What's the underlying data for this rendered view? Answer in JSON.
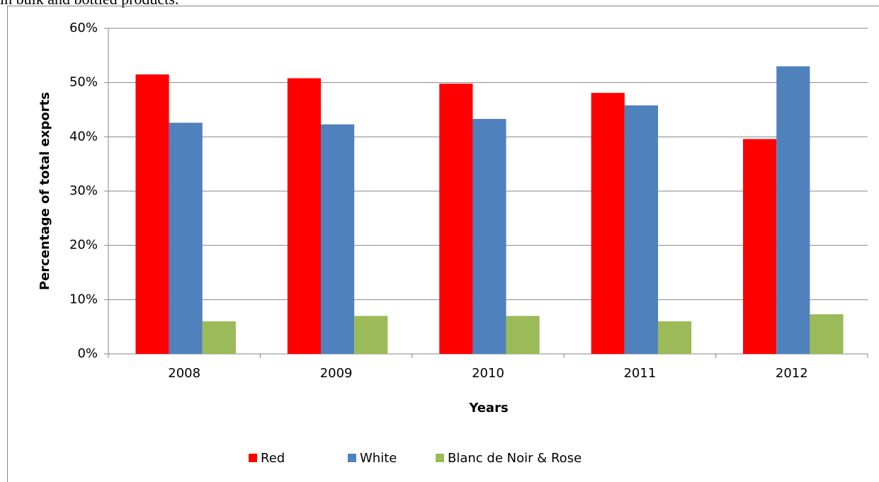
{
  "page_text": "in bulk and bottled products.",
  "chart_data": {
    "type": "bar",
    "x_label": "Years",
    "y_label": "Percentage of total exports",
    "categories": [
      "2008",
      "2009",
      "2010",
      "2011",
      "2012"
    ],
    "series": [
      {
        "name": "Red",
        "color": "#ff0000",
        "values": [
          51.5,
          50.8,
          49.8,
          48.1,
          39.6
        ]
      },
      {
        "name": "White",
        "color": "#4f81bd",
        "values": [
          42.6,
          42.3,
          43.3,
          45.8,
          53.0
        ]
      },
      {
        "name": "Blanc de Noir & Rose",
        "color": "#9bbb59",
        "values": [
          6.0,
          7.0,
          7.0,
          6.0,
          7.3
        ]
      }
    ],
    "ylim": [
      0,
      60
    ],
    "yticks": [
      {
        "value": 0,
        "label": "0%"
      },
      {
        "value": 10,
        "label": "10%"
      },
      {
        "value": 20,
        "label": "20%"
      },
      {
        "value": 30,
        "label": "30%"
      },
      {
        "value": 40,
        "label": "40%"
      },
      {
        "value": 50,
        "label": "50%"
      },
      {
        "value": 60,
        "label": "60%"
      }
    ],
    "grid": true,
    "legend": "bottom"
  }
}
